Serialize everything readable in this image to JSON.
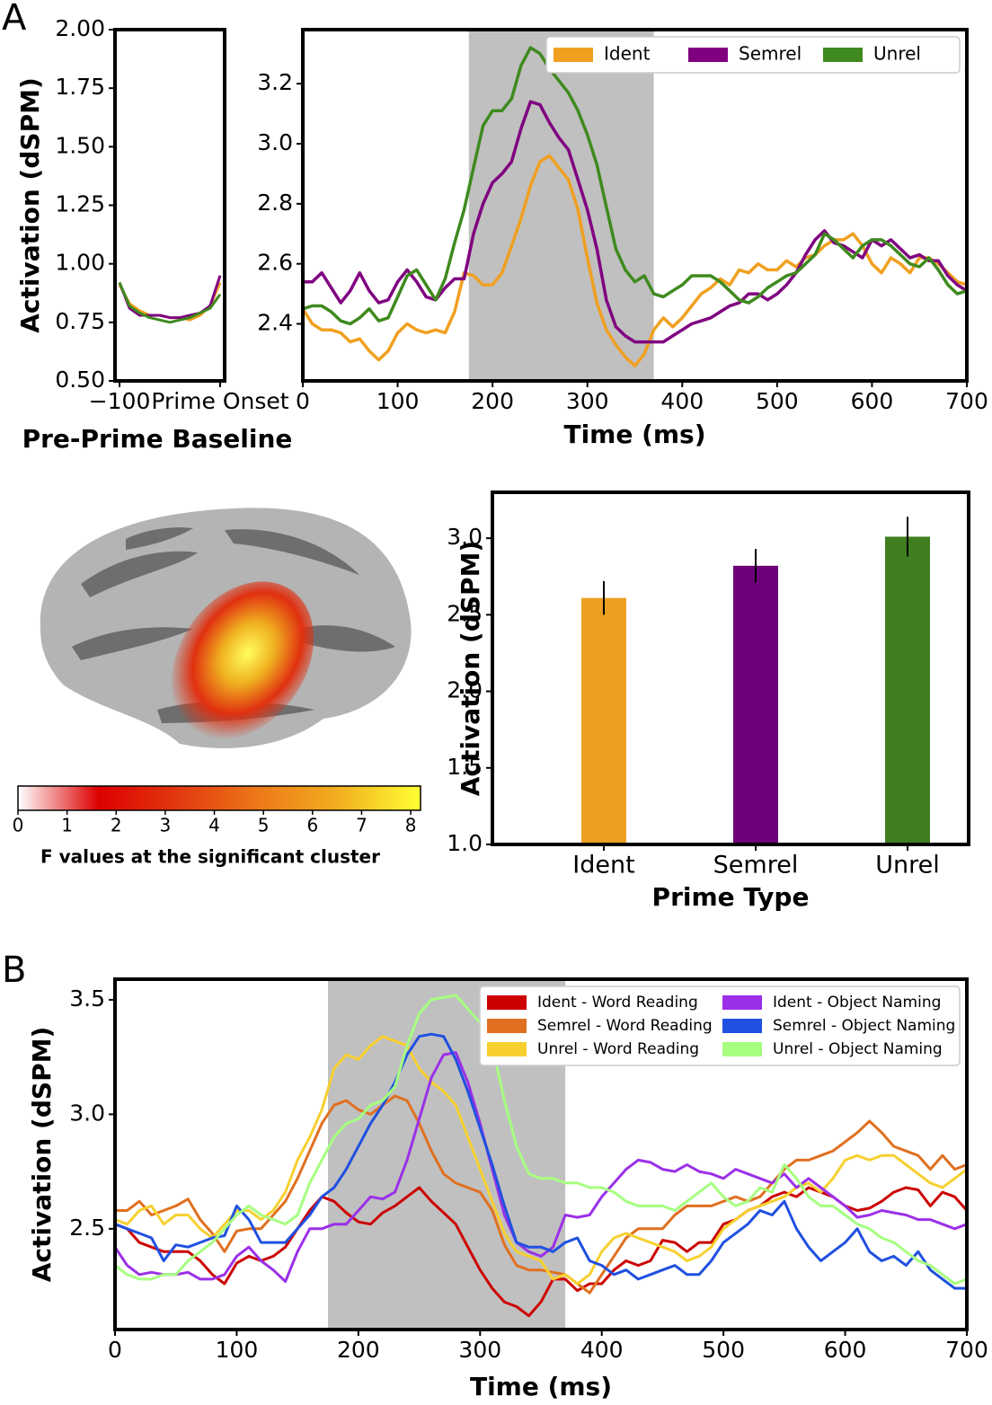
{
  "panels": [
    "A",
    "B"
  ],
  "chart_data": [
    {
      "type": "line",
      "ylabel": "Activation (dSPM)",
      "xlabel": "Pre-Prime Baseline",
      "x": [
        -100,
        -90,
        -80,
        -70,
        -60,
        -50,
        -40,
        -30,
        -20,
        -10,
        0
      ],
      "xlim": [
        -104.5,
        4.5
      ],
      "xticks": [
        {
          "value": -100,
          "label": "−100"
        },
        {
          "value": 0,
          "label": "Prime Onset"
        }
      ],
      "ylim": [
        0.5,
        2.0
      ],
      "yticks": [
        {
          "value": 0.5,
          "label": "0.50"
        },
        0.75,
        {
          "value": 1.0,
          "label": "1.00"
        },
        1.25,
        {
          "value": 1.5,
          "label": "1.50"
        },
        1.75,
        {
          "value": 2.0,
          "label": "2.00"
        }
      ],
      "series": [
        {
          "name": "Ident",
          "color": "#f0a020",
          "values": [
            0.91,
            0.83,
            0.8,
            0.78,
            0.78,
            0.77,
            0.77,
            0.76,
            0.78,
            0.82,
            0.92
          ]
        },
        {
          "name": "Semrel",
          "color": "#800080",
          "values": [
            0.92,
            0.81,
            0.78,
            0.78,
            0.78,
            0.77,
            0.77,
            0.78,
            0.79,
            0.82,
            0.95
          ]
        },
        {
          "name": "Unrel",
          "color": "#3f8a1f",
          "values": [
            0.92,
            0.82,
            0.79,
            0.77,
            0.76,
            0.75,
            0.76,
            0.77,
            0.79,
            0.81,
            0.87
          ]
        }
      ]
    },
    {
      "type": "line",
      "xlabel": "Time (ms)",
      "legend": "upper right",
      "legend_columns": 3,
      "shade": [
        175,
        370
      ],
      "x": [
        0,
        10,
        20,
        30,
        40,
        50,
        60,
        70,
        80,
        90,
        100,
        110,
        120,
        130,
        140,
        150,
        160,
        170,
        180,
        190,
        200,
        210,
        220,
        230,
        240,
        250,
        260,
        270,
        280,
        290,
        300,
        310,
        320,
        330,
        340,
        350,
        360,
        370,
        380,
        390,
        400,
        410,
        420,
        430,
        440,
        450,
        460,
        470,
        480,
        490,
        500,
        510,
        520,
        530,
        540,
        550,
        560,
        570,
        580,
        590,
        600,
        610,
        620,
        630,
        640,
        650,
        660,
        670,
        680,
        690,
        700
      ],
      "xlim": [
        0,
        700
      ],
      "xticks": [
        0,
        100,
        200,
        300,
        400,
        500,
        600,
        700
      ],
      "ylim": [
        2.21,
        3.38
      ],
      "yticks": [
        2.4,
        2.6,
        2.8,
        {
          "value": 3.0,
          "label": "3.0"
        },
        3.2
      ],
      "series": [
        {
          "name": "Ident",
          "color": "#f0a020",
          "values": [
            2.45,
            2.4,
            2.38,
            2.38,
            2.37,
            2.34,
            2.35,
            2.31,
            2.28,
            2.31,
            2.37,
            2.4,
            2.38,
            2.37,
            2.38,
            2.37,
            2.44,
            2.57,
            2.56,
            2.53,
            2.53,
            2.57,
            2.66,
            2.75,
            2.86,
            2.94,
            2.96,
            2.92,
            2.88,
            2.78,
            2.62,
            2.47,
            2.38,
            2.33,
            2.29,
            2.26,
            2.3,
            2.38,
            2.42,
            2.39,
            2.42,
            2.46,
            2.5,
            2.52,
            2.55,
            2.53,
            2.58,
            2.57,
            2.6,
            2.58,
            2.58,
            2.61,
            2.59,
            2.62,
            2.63,
            2.66,
            2.68,
            2.68,
            2.7,
            2.66,
            2.6,
            2.57,
            2.62,
            2.6,
            2.57,
            2.62,
            2.62,
            2.6,
            2.57,
            2.54,
            2.53
          ]
        },
        {
          "name": "Semrel",
          "color": "#800080",
          "values": [
            2.54,
            2.54,
            2.57,
            2.52,
            2.47,
            2.51,
            2.57,
            2.51,
            2.47,
            2.48,
            2.54,
            2.58,
            2.54,
            2.49,
            2.48,
            2.52,
            2.55,
            2.55,
            2.7,
            2.8,
            2.87,
            2.9,
            2.94,
            3.05,
            3.14,
            3.13,
            3.07,
            3.02,
            2.98,
            2.88,
            2.78,
            2.65,
            2.48,
            2.39,
            2.36,
            2.34,
            2.34,
            2.34,
            2.34,
            2.36,
            2.38,
            2.4,
            2.41,
            2.42,
            2.44,
            2.46,
            2.47,
            2.5,
            2.5,
            2.48,
            2.5,
            2.53,
            2.57,
            2.63,
            2.68,
            2.71,
            2.67,
            2.66,
            2.64,
            2.62,
            2.68,
            2.66,
            2.68,
            2.65,
            2.62,
            2.63,
            2.61,
            2.61,
            2.56,
            2.53,
            2.51
          ]
        },
        {
          "name": "Unrel",
          "color": "#3f8a1f",
          "values": [
            2.45,
            2.46,
            2.46,
            2.44,
            2.41,
            2.4,
            2.42,
            2.45,
            2.41,
            2.42,
            2.49,
            2.56,
            2.58,
            2.53,
            2.48,
            2.55,
            2.67,
            2.78,
            2.92,
            3.06,
            3.11,
            3.11,
            3.15,
            3.26,
            3.32,
            3.3,
            3.25,
            3.21,
            3.17,
            3.11,
            3.03,
            2.93,
            2.79,
            2.65,
            2.58,
            2.54,
            2.56,
            2.5,
            2.49,
            2.51,
            2.53,
            2.56,
            2.56,
            2.56,
            2.54,
            2.51,
            2.48,
            2.47,
            2.49,
            2.52,
            2.54,
            2.56,
            2.57,
            2.6,
            2.63,
            2.7,
            2.68,
            2.65,
            2.62,
            2.66,
            2.68,
            2.68,
            2.66,
            2.63,
            2.6,
            2.59,
            2.62,
            2.58,
            2.53,
            2.5,
            2.51
          ]
        }
      ]
    },
    {
      "type": "colorbar",
      "xlabel": "F values at the significant cluster",
      "xlim": [
        0,
        8.2
      ],
      "xticks": [
        0,
        1,
        2,
        3,
        4,
        5,
        6,
        7,
        8
      ],
      "colors": [
        "#ffffff",
        "#dd0000",
        "#e23a10",
        "#ec7a18",
        "#f2b020",
        "#ffff33"
      ]
    },
    {
      "type": "bar",
      "ylabel": "Activation (dSPM)",
      "xlabel": "Prime Type",
      "categories": [
        "Ident",
        "Semrel",
        "Unrel"
      ],
      "values": [
        2.61,
        2.82,
        3.01
      ],
      "errors": [
        0.11,
        0.11,
        0.13
      ],
      "colors": [
        "#eba021",
        "#6c0078",
        "#3f7f1f"
      ],
      "ylim": [
        1.0,
        3.3
      ],
      "yticks": [
        {
          "value": 1.0,
          "label": "1.0"
        },
        1.5,
        {
          "value": 2.0,
          "label": "2.0"
        },
        2.5,
        {
          "value": 3.0,
          "label": "3.0"
        }
      ]
    },
    {
      "type": "line",
      "ylabel": "Activation (dSPM)",
      "xlabel": "Time (ms)",
      "legend": "upper right",
      "legend_columns": 2,
      "shade": [
        175,
        370
      ],
      "x": [
        0,
        10,
        20,
        30,
        40,
        50,
        60,
        70,
        80,
        90,
        100,
        110,
        120,
        130,
        140,
        150,
        160,
        170,
        180,
        190,
        200,
        210,
        220,
        230,
        240,
        250,
        260,
        270,
        280,
        290,
        300,
        310,
        320,
        330,
        340,
        350,
        360,
        370,
        380,
        390,
        400,
        410,
        420,
        430,
        440,
        450,
        460,
        470,
        480,
        490,
        500,
        510,
        520,
        530,
        540,
        550,
        560,
        570,
        580,
        590,
        600,
        610,
        620,
        630,
        640,
        650,
        660,
        670,
        680,
        690,
        700
      ],
      "xlim": [
        0,
        700
      ],
      "xticks": [
        0,
        100,
        200,
        300,
        400,
        500,
        600,
        700
      ],
      "ylim": [
        2.06,
        3.59
      ],
      "yticks": [
        2.5,
        {
          "value": 3.0,
          "label": "3.0"
        },
        3.5
      ],
      "series": [
        {
          "name": "Ident - Word Reading",
          "color": "#cc0000",
          "values": [
            2.52,
            2.5,
            2.44,
            2.42,
            2.4,
            2.4,
            2.4,
            2.36,
            2.3,
            2.26,
            2.35,
            2.38,
            2.36,
            2.38,
            2.42,
            2.5,
            2.58,
            2.64,
            2.62,
            2.57,
            2.53,
            2.52,
            2.57,
            2.6,
            2.64,
            2.68,
            2.62,
            2.57,
            2.52,
            2.42,
            2.32,
            2.24,
            2.18,
            2.16,
            2.12,
            2.18,
            2.28,
            2.28,
            2.23,
            2.26,
            2.26,
            2.32,
            2.36,
            2.34,
            2.36,
            2.45,
            2.44,
            2.4,
            2.44,
            2.44,
            2.52,
            2.54,
            2.58,
            2.6,
            2.64,
            2.66,
            2.64,
            2.68,
            2.66,
            2.64,
            2.6,
            2.58,
            2.59,
            2.62,
            2.66,
            2.68,
            2.67,
            2.6,
            2.66,
            2.64,
            2.58
          ]
        },
        {
          "name": "Semrel - Word Reading",
          "color": "#e07020",
          "values": [
            2.58,
            2.58,
            2.62,
            2.56,
            2.58,
            2.6,
            2.63,
            2.54,
            2.48,
            2.4,
            2.49,
            2.5,
            2.5,
            2.56,
            2.62,
            2.72,
            2.84,
            2.96,
            3.04,
            3.06,
            3.02,
            3.0,
            3.04,
            3.08,
            3.06,
            2.96,
            2.84,
            2.74,
            2.7,
            2.68,
            2.66,
            2.58,
            2.43,
            2.34,
            2.32,
            2.32,
            2.31,
            2.3,
            2.26,
            2.22,
            2.3,
            2.38,
            2.46,
            2.5,
            2.5,
            2.5,
            2.56,
            2.6,
            2.6,
            2.6,
            2.62,
            2.64,
            2.62,
            2.64,
            2.7,
            2.76,
            2.8,
            2.8,
            2.82,
            2.84,
            2.88,
            2.92,
            2.97,
            2.92,
            2.86,
            2.84,
            2.82,
            2.76,
            2.82,
            2.76,
            2.78
          ]
        },
        {
          "name": "Unrel - Word Reading",
          "color": "#f7d030",
          "values": [
            2.54,
            2.52,
            2.58,
            2.6,
            2.52,
            2.56,
            2.56,
            2.5,
            2.46,
            2.52,
            2.58,
            2.58,
            2.54,
            2.58,
            2.66,
            2.8,
            2.9,
            3.02,
            3.2,
            3.26,
            3.24,
            3.3,
            3.34,
            3.32,
            3.3,
            3.2,
            3.14,
            3.1,
            3.04,
            2.9,
            2.76,
            2.62,
            2.48,
            2.4,
            2.38,
            2.36,
            2.28,
            2.3,
            2.26,
            2.3,
            2.4,
            2.46,
            2.48,
            2.46,
            2.44,
            2.42,
            2.4,
            2.36,
            2.38,
            2.42,
            2.5,
            2.54,
            2.58,
            2.6,
            2.62,
            2.64,
            2.68,
            2.7,
            2.66,
            2.72,
            2.8,
            2.82,
            2.8,
            2.82,
            2.82,
            2.78,
            2.74,
            2.7,
            2.68,
            2.72,
            2.76
          ]
        },
        {
          "name": "Ident - Object Naming",
          "color": "#9b30e8",
          "values": [
            2.42,
            2.34,
            2.3,
            2.31,
            2.3,
            2.3,
            2.31,
            2.28,
            2.28,
            2.3,
            2.38,
            2.42,
            2.36,
            2.32,
            2.27,
            2.4,
            2.5,
            2.5,
            2.52,
            2.52,
            2.58,
            2.64,
            2.63,
            2.66,
            2.8,
            2.98,
            3.16,
            3.26,
            3.27,
            3.14,
            2.96,
            2.76,
            2.56,
            2.44,
            2.4,
            2.38,
            2.42,
            2.56,
            2.55,
            2.56,
            2.64,
            2.7,
            2.76,
            2.8,
            2.79,
            2.76,
            2.75,
            2.78,
            2.75,
            2.74,
            2.72,
            2.76,
            2.74,
            2.72,
            2.7,
            2.74,
            2.68,
            2.72,
            2.68,
            2.64,
            2.6,
            2.55,
            2.56,
            2.58,
            2.57,
            2.56,
            2.54,
            2.54,
            2.52,
            2.5,
            2.52
          ]
        },
        {
          "name": "Semrel - Object Naming",
          "color": "#2050e0",
          "values": [
            2.52,
            2.5,
            2.48,
            2.46,
            2.36,
            2.43,
            2.42,
            2.44,
            2.46,
            2.47,
            2.6,
            2.54,
            2.44,
            2.44,
            2.44,
            2.5,
            2.56,
            2.64,
            2.68,
            2.76,
            2.86,
            2.96,
            3.04,
            3.14,
            3.26,
            3.34,
            3.35,
            3.34,
            3.24,
            3.1,
            2.94,
            2.78,
            2.6,
            2.44,
            2.42,
            2.42,
            2.4,
            2.44,
            2.46,
            2.36,
            2.34,
            2.3,
            2.32,
            2.28,
            2.3,
            2.32,
            2.34,
            2.3,
            2.3,
            2.36,
            2.44,
            2.48,
            2.52,
            2.58,
            2.56,
            2.62,
            2.5,
            2.42,
            2.36,
            2.4,
            2.44,
            2.5,
            2.4,
            2.36,
            2.38,
            2.34,
            2.4,
            2.32,
            2.28,
            2.24,
            2.24
          ]
        },
        {
          "name": "Unrel - Object Naming",
          "color": "#a6ff80",
          "values": [
            2.34,
            2.3,
            2.28,
            2.28,
            2.3,
            2.3,
            2.36,
            2.4,
            2.44,
            2.5,
            2.56,
            2.6,
            2.56,
            2.54,
            2.52,
            2.56,
            2.7,
            2.8,
            2.9,
            2.96,
            2.98,
            3.04,
            3.06,
            3.12,
            3.3,
            3.44,
            3.5,
            3.51,
            3.52,
            3.46,
            3.4,
            3.3,
            3.06,
            2.86,
            2.74,
            2.72,
            2.72,
            2.7,
            2.7,
            2.68,
            2.68,
            2.66,
            2.62,
            2.6,
            2.6,
            2.6,
            2.58,
            2.62,
            2.66,
            2.7,
            2.64,
            2.6,
            2.62,
            2.68,
            2.66,
            2.78,
            2.72,
            2.64,
            2.6,
            2.6,
            2.56,
            2.52,
            2.5,
            2.46,
            2.44,
            2.4,
            2.36,
            2.34,
            2.3,
            2.26,
            2.28
          ]
        }
      ]
    }
  ]
}
